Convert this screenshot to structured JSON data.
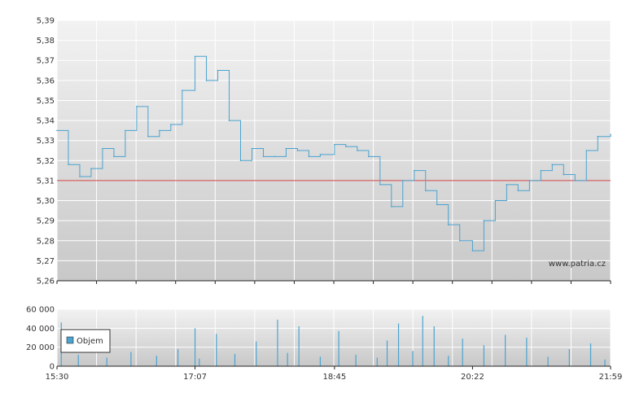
{
  "watermark": "www.patria.cz",
  "legend_label": "Objem",
  "colors": {
    "plot_top": "#f2f2f2",
    "plot_bottom": "#c8c8c8",
    "grid": "#ffffff",
    "series": "#4aa3d0",
    "reference": "#d04040",
    "axis": "#222222"
  },
  "chart_data": [
    {
      "type": "line",
      "title": "",
      "ylim": [
        5.26,
        5.39
      ],
      "y_ticks": [
        "5,26",
        "5,27",
        "5,28",
        "5,29",
        "5,30",
        "5,31",
        "5,32",
        "5,33",
        "5,34",
        "5,35",
        "5,36",
        "5,37",
        "5,38",
        "5,39"
      ],
      "reference_line": 5.31,
      "series": [
        {
          "x": [
            "15:30",
            "15:38",
            "15:46",
            "15:54",
            "16:02",
            "16:10",
            "16:18",
            "16:26",
            "16:34",
            "16:42",
            "16:50",
            "16:58",
            "17:07",
            "17:15",
            "17:23",
            "17:31",
            "17:39",
            "17:47",
            "17:55",
            "18:03",
            "18:11",
            "18:19",
            "18:27",
            "18:35",
            "18:45",
            "18:53",
            "19:01",
            "19:09",
            "19:17",
            "19:25",
            "19:33",
            "19:41",
            "19:49",
            "19:57",
            "20:05",
            "20:13",
            "20:22",
            "20:30",
            "20:38",
            "20:46",
            "20:54",
            "21:02",
            "21:10",
            "21:18",
            "21:26",
            "21:34",
            "21:42",
            "21:50",
            "21:59"
          ],
          "values": [
            5.335,
            5.318,
            5.312,
            5.316,
            5.326,
            5.322,
            5.335,
            5.347,
            5.332,
            5.335,
            5.338,
            5.355,
            5.372,
            5.36,
            5.365,
            5.34,
            5.32,
            5.326,
            5.322,
            5.322,
            5.326,
            5.325,
            5.322,
            5.323,
            5.328,
            5.327,
            5.325,
            5.322,
            5.308,
            5.297,
            5.31,
            5.315,
            5.305,
            5.298,
            5.288,
            5.28,
            5.275,
            5.29,
            5.3,
            5.308,
            5.305,
            5.31,
            5.315,
            5.318,
            5.313,
            5.31,
            5.325,
            5.332,
            5.333
          ]
        }
      ]
    },
    {
      "type": "bar",
      "title": "",
      "ylim": [
        0,
        60000
      ],
      "y_ticks": [
        "0",
        "20 000",
        "40 000",
        "60 000"
      ],
      "x_ticks": [
        "15:30",
        "17:07",
        "18:45",
        "20:22",
        "21:59"
      ],
      "legend": [
        "Objem"
      ],
      "series": [
        {
          "name": "Objem",
          "x": [
            "15:33",
            "15:45",
            "16:05",
            "16:22",
            "16:40",
            "16:55",
            "17:07",
            "17:10",
            "17:22",
            "17:35",
            "17:50",
            "18:05",
            "18:12",
            "18:20",
            "18:35",
            "18:48",
            "19:00",
            "19:15",
            "19:22",
            "19:30",
            "19:40",
            "19:47",
            "19:55",
            "20:05",
            "20:15",
            "20:30",
            "20:45",
            "21:00",
            "21:15",
            "21:30",
            "21:45",
            "21:55"
          ],
          "values": [
            46000,
            12000,
            9000,
            15000,
            11000,
            18000,
            40000,
            8000,
            34000,
            13000,
            26000,
            49000,
            14000,
            42000,
            10000,
            37000,
            12000,
            9000,
            27000,
            45000,
            16000,
            53000,
            42000,
            11000,
            29000,
            22000,
            33000,
            30000,
            10000,
            18000,
            24000,
            7000
          ]
        }
      ]
    }
  ]
}
